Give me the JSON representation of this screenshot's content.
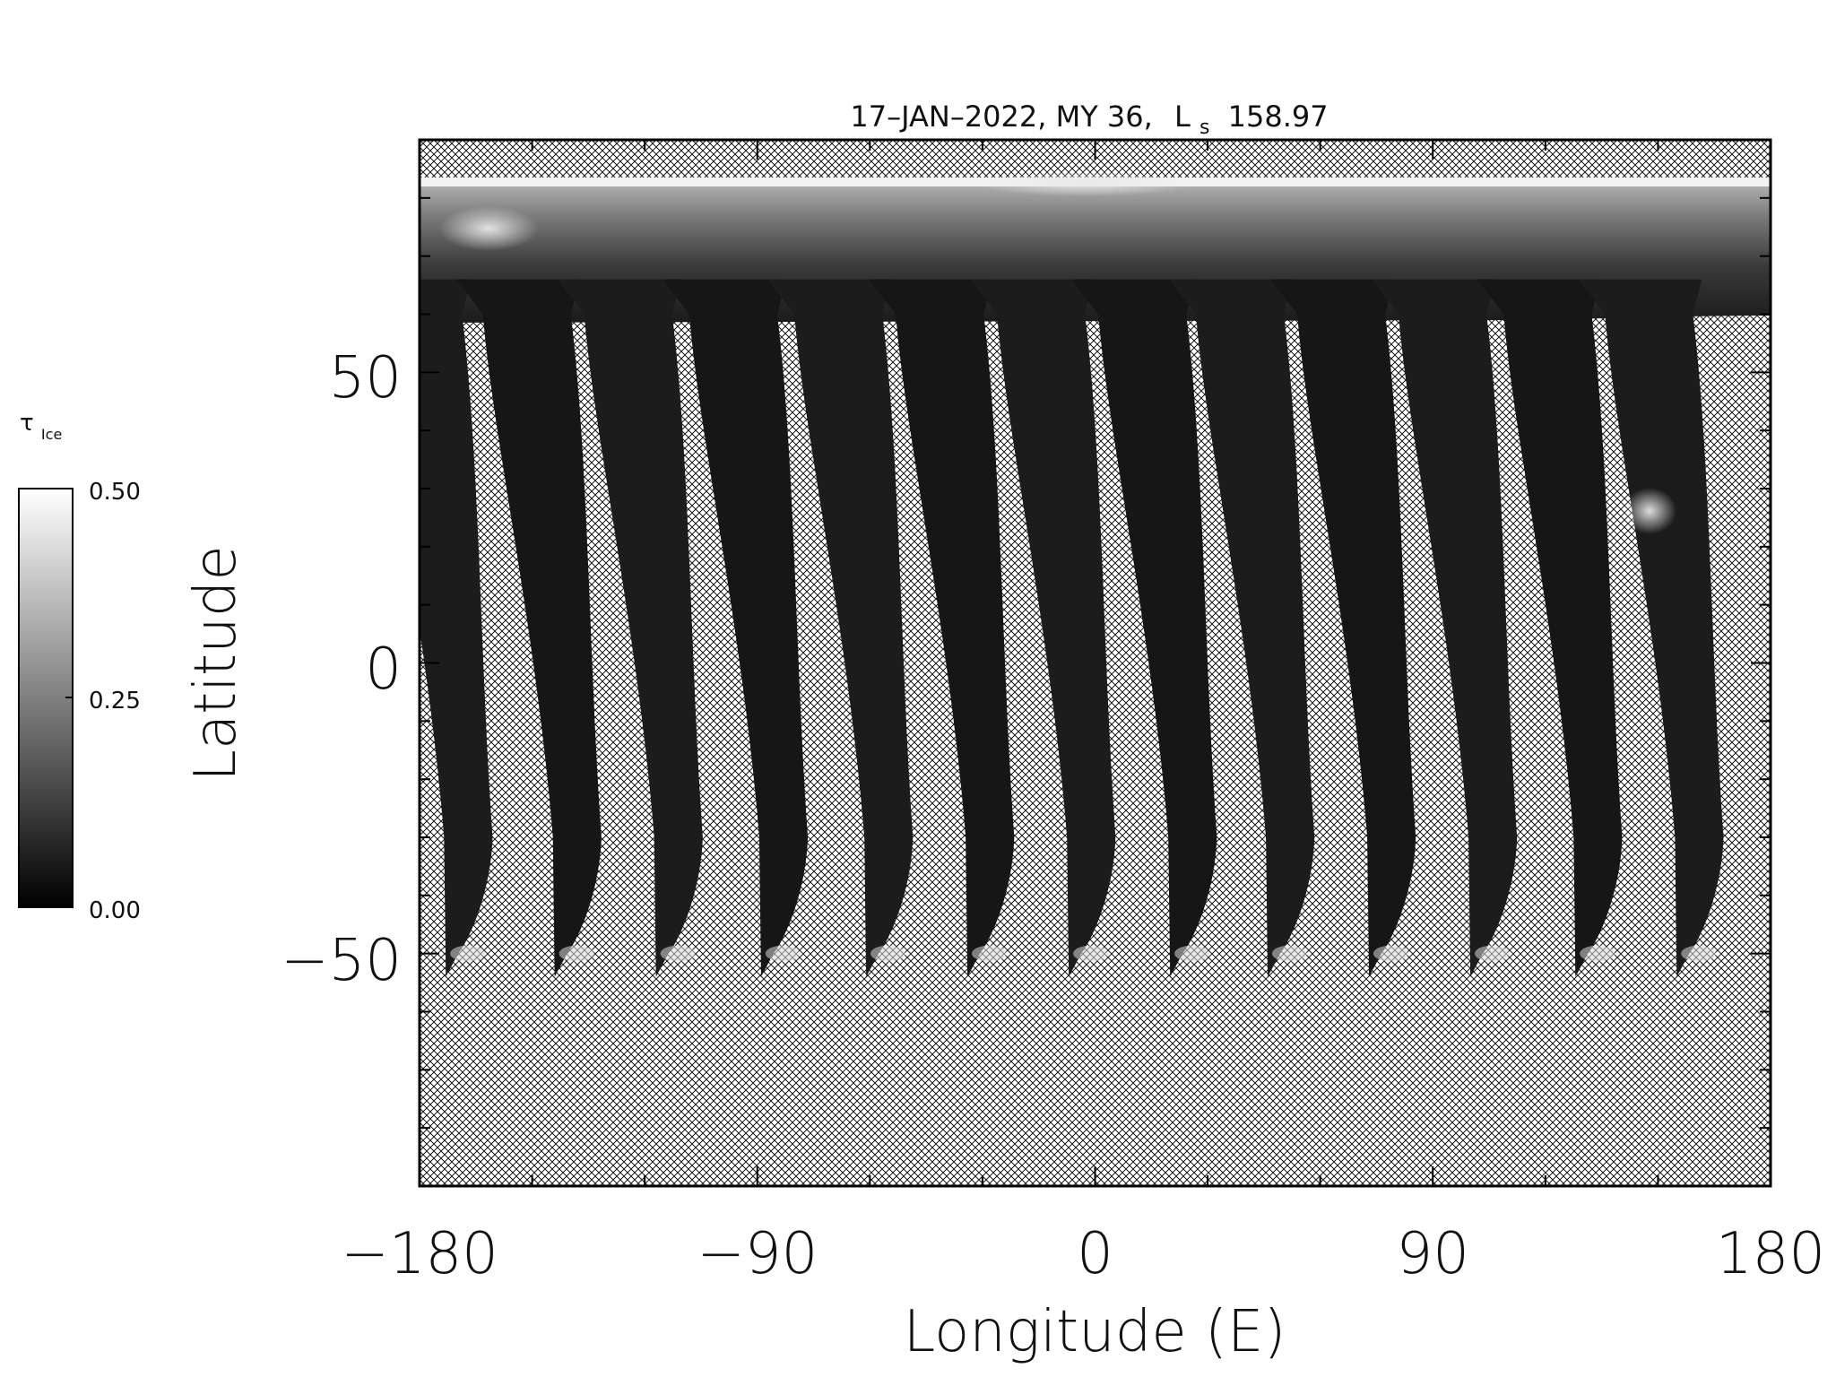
{
  "figure": {
    "title_prefix": "17–JAN–2022, MY 36,",
    "title_ls": "L",
    "title_ls_sub": "s",
    "title_value": "158.97"
  },
  "colorbar": {
    "symbol": "τ",
    "symbol_sub": "Ice",
    "ticks": [
      "0.50",
      "0.25",
      "0.00"
    ],
    "range": [
      0,
      0.5
    ],
    "colormap": "grayscale (black = 0.00, white = 0.50)"
  },
  "chart_data": {
    "type": "heatmap",
    "title": "17–JAN–2022, MY 36, Ls 158.97",
    "xlabel": "Longitude (E)",
    "ylabel": "Latitude",
    "xlim": [
      -180,
      180
    ],
    "ylim": [
      -90,
      90
    ],
    "xticks": [
      -180,
      -90,
      0,
      90,
      180
    ],
    "xtick_labels": [
      "−180",
      "−90",
      "0",
      "90",
      "180"
    ],
    "yticks": [
      50,
      0,
      -50
    ],
    "ytick_labels": [
      "50",
      "0",
      "−50"
    ],
    "no_data_fill": "cross-hatch",
    "swath_count": 13,
    "swath_bottom_longitudes": [
      -173,
      -144,
      -117,
      -89,
      -61,
      -34,
      -7,
      20,
      46,
      73,
      100,
      128,
      155
    ],
    "features": [
      {
        "region": "north polar cap edge",
        "lat_range": [
          75,
          84
        ],
        "value": "~0.5"
      },
      {
        "region": "northern high latitudes",
        "lat_range": [
          60,
          84
        ],
        "value": "0.05-0.4"
      },
      {
        "region": "low and mid latitudes",
        "lat_range": [
          -45,
          55
        ],
        "value": "~0.02-0.08"
      },
      {
        "region": "southern edge of swaths",
        "lat_range": [
          -55,
          -45
        ],
        "value": "up to ~0.5"
      }
    ]
  },
  "colors": {
    "background": "#ffffff",
    "axis": "#000000",
    "data_low": "#151515",
    "data_high": "#ffffff"
  }
}
